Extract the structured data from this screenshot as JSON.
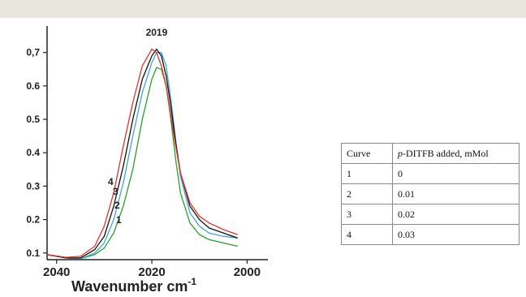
{
  "chart_data": {
    "type": "line",
    "xlabel_text": "Wavenumber   cm",
    "xlabel_unit_sup": "-1",
    "x_ticks": [
      "2040",
      "2020",
      "2000"
    ],
    "y_ticks": [
      "0.1",
      "0.2",
      "0.3",
      "0.4",
      "0.5",
      "0.6",
      "0,7"
    ],
    "peak_label": "2019",
    "xlim": [
      2042,
      1997
    ],
    "ylim": [
      0.08,
      0.76
    ],
    "x_reversed": true,
    "series": [
      {
        "name": "1",
        "color": "#2aa02a",
        "points": [
          [
            2042,
            0.095
          ],
          [
            2038,
            0.085
          ],
          [
            2035,
            0.083
          ],
          [
            2032,
            0.095
          ],
          [
            2030,
            0.115
          ],
          [
            2028,
            0.16
          ],
          [
            2026,
            0.24
          ],
          [
            2024,
            0.35
          ],
          [
            2022,
            0.5
          ],
          [
            2020,
            0.62
          ],
          [
            2019,
            0.655
          ],
          [
            2018,
            0.65
          ],
          [
            2017,
            0.6
          ],
          [
            2016,
            0.5
          ],
          [
            2015,
            0.38
          ],
          [
            2014,
            0.28
          ],
          [
            2012,
            0.19
          ],
          [
            2010,
            0.155
          ],
          [
            2008,
            0.14
          ],
          [
            2005,
            0.13
          ],
          [
            2002,
            0.12
          ]
        ]
      },
      {
        "name": "2",
        "color": "#3aa8d8",
        "points": [
          [
            2042,
            0.095
          ],
          [
            2038,
            0.085
          ],
          [
            2035,
            0.083
          ],
          [
            2032,
            0.1
          ],
          [
            2030,
            0.13
          ],
          [
            2028,
            0.2
          ],
          [
            2026,
            0.31
          ],
          [
            2024,
            0.45
          ],
          [
            2022,
            0.58
          ],
          [
            2020,
            0.67
          ],
          [
            2019,
            0.7
          ],
          [
            2018,
            0.7
          ],
          [
            2017,
            0.66
          ],
          [
            2016,
            0.56
          ],
          [
            2015,
            0.44
          ],
          [
            2014,
            0.33
          ],
          [
            2012,
            0.22
          ],
          [
            2010,
            0.18
          ],
          [
            2008,
            0.16
          ],
          [
            2005,
            0.15
          ],
          [
            2002,
            0.145
          ]
        ]
      },
      {
        "name": "3",
        "color": "#111111",
        "points": [
          [
            2042,
            0.095
          ],
          [
            2038,
            0.085
          ],
          [
            2035,
            0.085
          ],
          [
            2032,
            0.11
          ],
          [
            2030,
            0.15
          ],
          [
            2028,
            0.24
          ],
          [
            2026,
            0.36
          ],
          [
            2024,
            0.5
          ],
          [
            2022,
            0.62
          ],
          [
            2020,
            0.69
          ],
          [
            2019,
            0.71
          ],
          [
            2018,
            0.69
          ],
          [
            2017,
            0.63
          ],
          [
            2016,
            0.54
          ],
          [
            2015,
            0.43
          ],
          [
            2014,
            0.34
          ],
          [
            2012,
            0.24
          ],
          [
            2010,
            0.2
          ],
          [
            2008,
            0.175
          ],
          [
            2005,
            0.16
          ],
          [
            2002,
            0.145
          ]
        ]
      },
      {
        "name": "4",
        "color": "#e8302a",
        "points": [
          [
            2042,
            0.095
          ],
          [
            2038,
            0.087
          ],
          [
            2035,
            0.09
          ],
          [
            2032,
            0.12
          ],
          [
            2030,
            0.18
          ],
          [
            2028,
            0.28
          ],
          [
            2026,
            0.42
          ],
          [
            2024,
            0.55
          ],
          [
            2022,
            0.66
          ],
          [
            2020,
            0.71
          ],
          [
            2019,
            0.7
          ],
          [
            2018,
            0.66
          ],
          [
            2017,
            0.6
          ],
          [
            2016,
            0.51
          ],
          [
            2015,
            0.42
          ],
          [
            2014,
            0.34
          ],
          [
            2012,
            0.25
          ],
          [
            2010,
            0.21
          ],
          [
            2008,
            0.19
          ],
          [
            2005,
            0.17
          ],
          [
            2002,
            0.155
          ]
        ]
      }
    ]
  },
  "legend_table": {
    "header": [
      "Curve",
      "p-DITFB added, mMol"
    ],
    "header_italic_prefix": "p",
    "header_rest": "-DITFB added, mMol",
    "rows": [
      [
        "1",
        "0"
      ],
      [
        "2",
        "0.01"
      ],
      [
        "3",
        "0.02"
      ],
      [
        "4",
        "0.03"
      ]
    ]
  }
}
